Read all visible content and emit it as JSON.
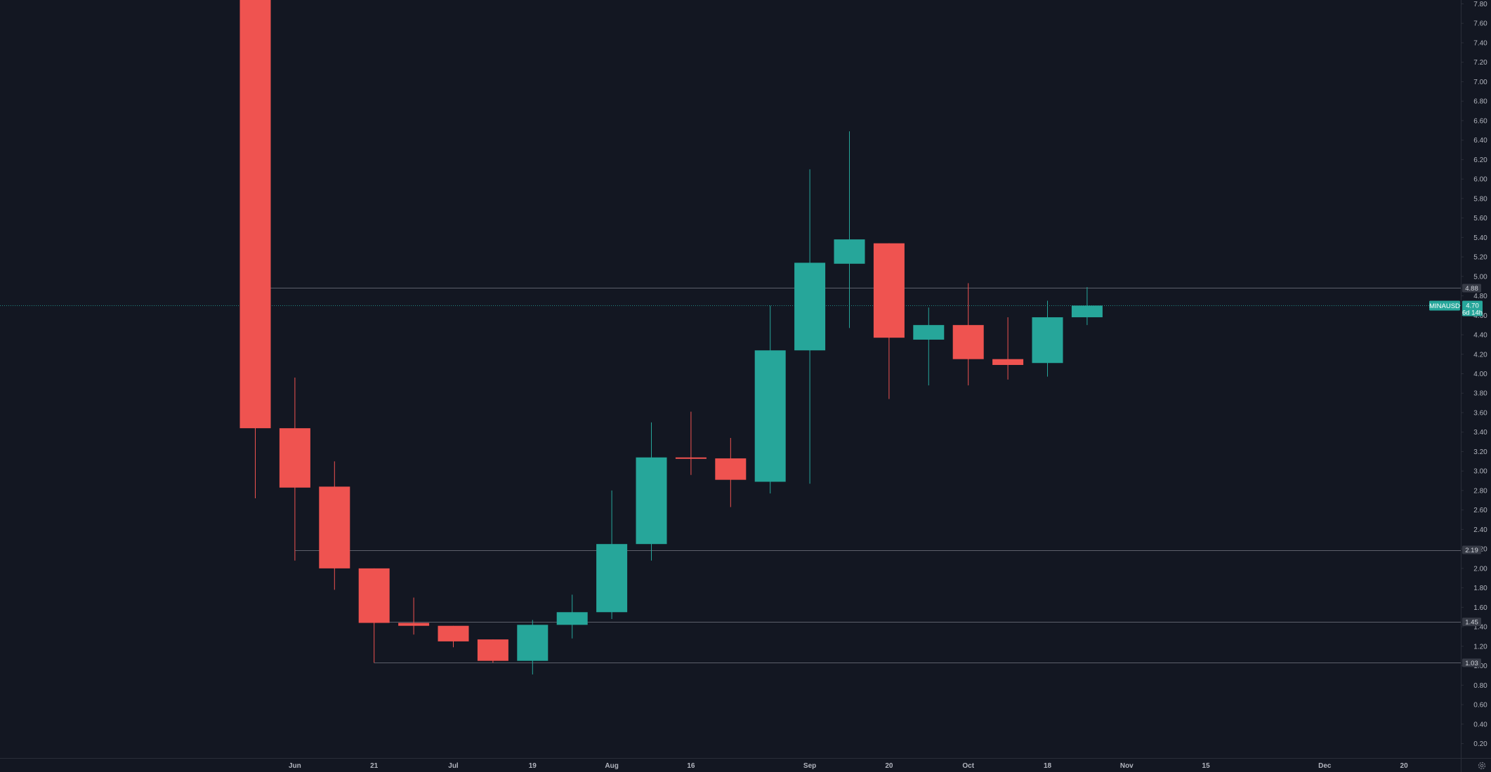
{
  "chart_data": {
    "type": "candlestick",
    "symbol": "MINAUSD",
    "countdown": "6d 14h",
    "interval": "weekly",
    "ylim": [
      0.04,
      7.86
    ],
    "y_ticks": [
      "0.20",
      "0.40",
      "0.60",
      "0.80",
      "1.00",
      "1.20",
      "1.40",
      "1.60",
      "1.80",
      "2.00",
      "2.20",
      "2.40",
      "2.60",
      "2.80",
      "3.00",
      "3.20",
      "3.40",
      "3.60",
      "3.80",
      "4.00",
      "4.20",
      "4.40",
      "4.60",
      "4.80",
      "5.00",
      "5.20",
      "5.40",
      "5.60",
      "5.80",
      "6.00",
      "6.20",
      "6.40",
      "6.60",
      "6.80",
      "7.00",
      "7.20",
      "7.40",
      "7.60",
      "7.80"
    ],
    "x_ticks": [
      {
        "label": "Jun",
        "index": 1
      },
      {
        "label": "21",
        "index": 3
      },
      {
        "label": "Jul",
        "index": 5
      },
      {
        "label": "19",
        "index": 7
      },
      {
        "label": "Aug",
        "index": 9
      },
      {
        "label": "16",
        "index": 11
      },
      {
        "label": "Sep",
        "index": 14
      },
      {
        "label": "20",
        "index": 16
      },
      {
        "label": "Oct",
        "index": 18
      },
      {
        "label": "18",
        "index": 20
      },
      {
        "label": "Nov",
        "index": 22
      },
      {
        "label": "15",
        "index": 24
      },
      {
        "label": "Dec",
        "index": 27
      },
      {
        "label": "20",
        "index": 29
      }
    ],
    "candles": [
      {
        "o": 7.86,
        "h": 7.86,
        "l": 2.72,
        "c": 3.44
      },
      {
        "o": 3.44,
        "h": 3.96,
        "l": 2.08,
        "c": 2.83
      },
      {
        "o": 2.84,
        "h": 3.1,
        "l": 1.78,
        "c": 2.0
      },
      {
        "o": 2.0,
        "h": 2.0,
        "l": 1.03,
        "c": 1.44
      },
      {
        "o": 1.44,
        "h": 1.7,
        "l": 1.32,
        "c": 1.41
      },
      {
        "o": 1.41,
        "h": 1.41,
        "l": 1.19,
        "c": 1.25
      },
      {
        "o": 1.27,
        "h": 1.27,
        "l": 1.03,
        "c": 1.05
      },
      {
        "o": 1.05,
        "h": 1.47,
        "l": 0.91,
        "c": 1.42
      },
      {
        "o": 1.42,
        "h": 1.73,
        "l": 1.28,
        "c": 1.55
      },
      {
        "o": 1.55,
        "h": 2.8,
        "l": 1.48,
        "c": 2.25
      },
      {
        "o": 2.25,
        "h": 3.5,
        "l": 2.08,
        "c": 3.14
      },
      {
        "o": 3.14,
        "h": 3.61,
        "l": 2.96,
        "c": 3.13
      },
      {
        "o": 3.13,
        "h": 3.34,
        "l": 2.63,
        "c": 2.91
      },
      {
        "o": 2.89,
        "h": 4.7,
        "l": 2.77,
        "c": 4.24
      },
      {
        "o": 4.24,
        "h": 6.1,
        "l": 2.87,
        "c": 5.14
      },
      {
        "o": 5.13,
        "h": 6.49,
        "l": 4.47,
        "c": 5.38
      },
      {
        "o": 5.34,
        "h": 5.34,
        "l": 3.74,
        "c": 4.37
      },
      {
        "o": 4.35,
        "h": 4.68,
        "l": 3.88,
        "c": 4.5
      },
      {
        "o": 4.5,
        "h": 4.93,
        "l": 3.88,
        "c": 4.15
      },
      {
        "o": 4.15,
        "h": 4.58,
        "l": 3.94,
        "c": 4.09
      },
      {
        "o": 4.11,
        "h": 4.75,
        "l": 3.97,
        "c": 4.58
      },
      {
        "o": 4.58,
        "h": 4.89,
        "l": 4.5,
        "c": 4.7
      }
    ],
    "levels": [
      {
        "value": 4.88,
        "label": "4.88",
        "start_index": 0
      },
      {
        "value": 2.19,
        "label": "2.19",
        "start_index": 1
      },
      {
        "value": 1.45,
        "label": "1.45",
        "start_index": 3
      },
      {
        "value": 1.03,
        "label": "1.03",
        "start_index": 3
      }
    ],
    "last_price": {
      "value": 4.7,
      "label": "4.70"
    },
    "colors": {
      "background": "#131722",
      "up": "#26a69a",
      "down": "#ef5350",
      "level_line": "#5d606b",
      "axis_border": "#2a2e39",
      "tick_text": "#b2b5be",
      "badge_bg": "#363a45"
    },
    "grid": false,
    "icons": {
      "settings": "gear-icon"
    }
  }
}
